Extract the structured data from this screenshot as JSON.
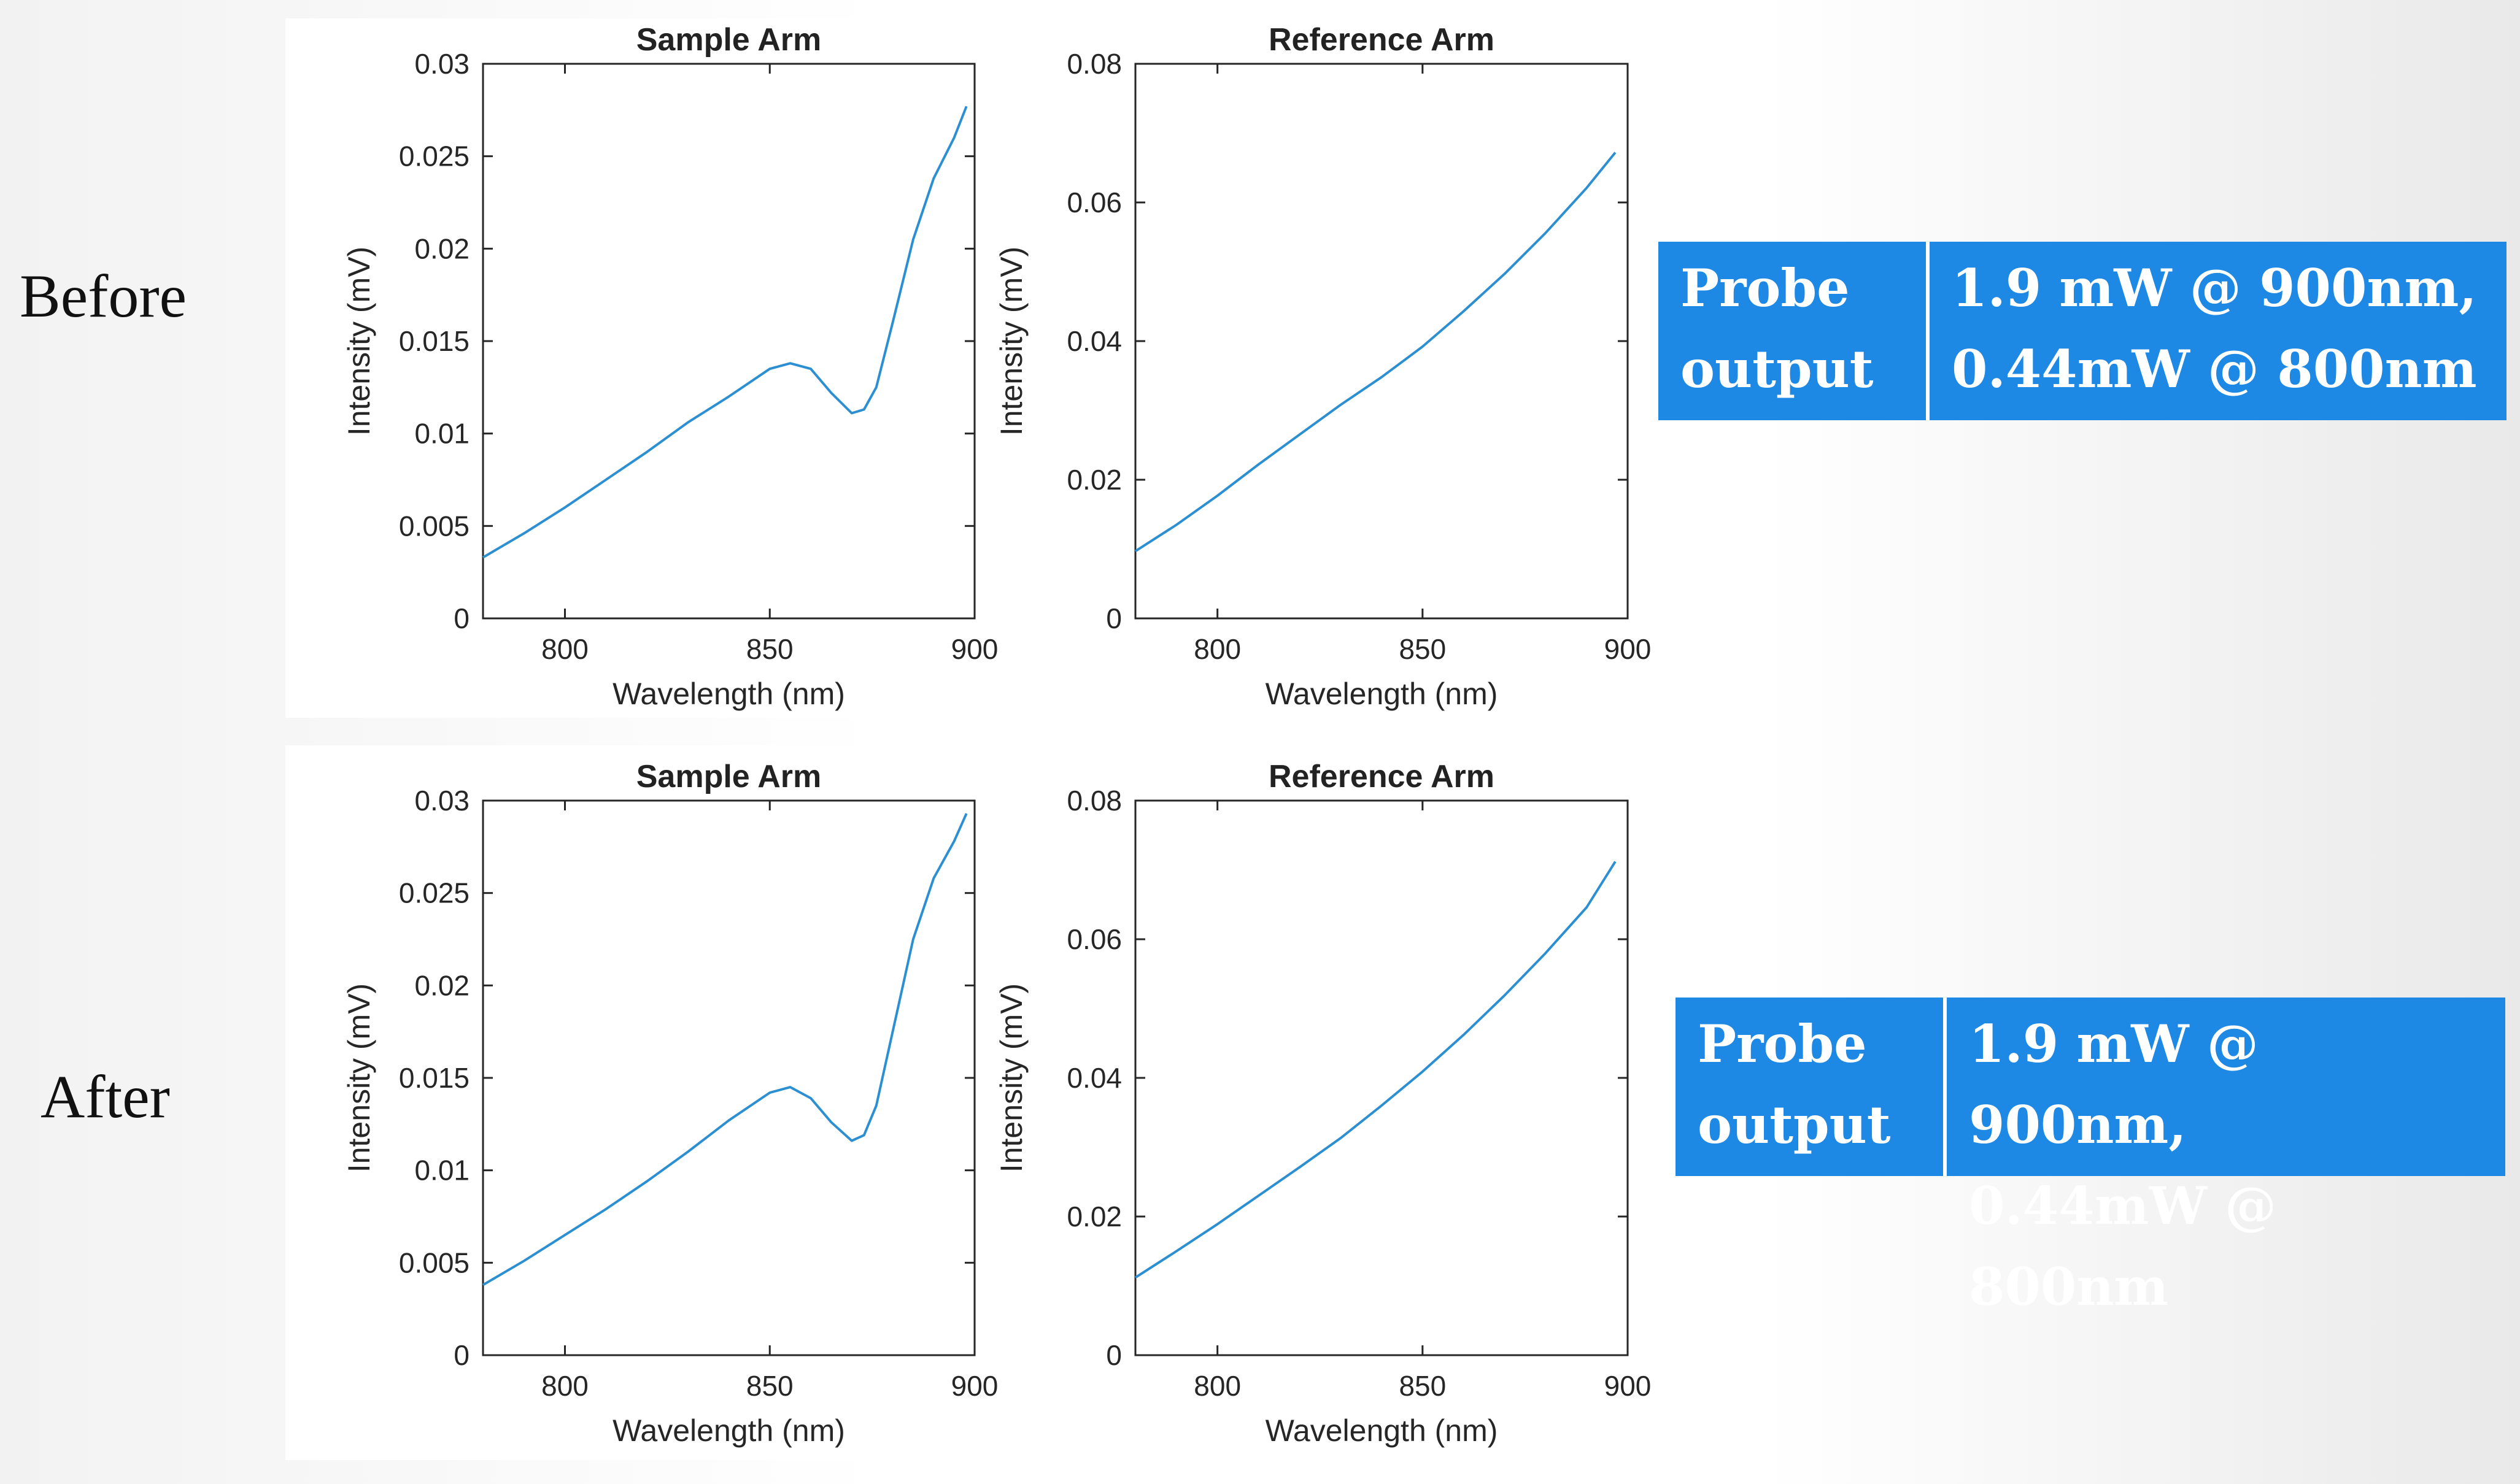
{
  "rows": [
    {
      "label": "Before",
      "info": {
        "label": "Probe\noutput",
        "value": "1.9 mW @ 900nm,\n0.44mW @ 800nm",
        "color": "#1e88e5"
      }
    },
    {
      "label": "After",
      "info": {
        "label": "Probe\noutput",
        "value": "1.9 mW @ 900nm,\n0.44mW @ 800nm",
        "color": "#1e88e5"
      }
    }
  ],
  "chart_data": [
    {
      "id": "before-sample",
      "type": "line",
      "title": "Sample Arm",
      "xlabel": "Wavelength (nm)",
      "ylabel": "Intensity (mV)",
      "xlim": [
        780,
        900
      ],
      "ylim": [
        0,
        0.03
      ],
      "xticks": [
        "800",
        "850",
        "900"
      ],
      "yticks": [
        "0",
        "0.005",
        "0.01",
        "0.015",
        "0.02",
        "0.025",
        "0.03"
      ],
      "line_color": "#2b8fd1",
      "grid": false,
      "x": [
        780,
        790,
        800,
        810,
        820,
        830,
        840,
        850,
        855,
        860,
        865,
        870,
        873,
        876,
        880,
        885,
        890,
        895,
        898
      ],
      "y": [
        0.0033,
        0.0046,
        0.006,
        0.0075,
        0.009,
        0.0106,
        0.012,
        0.0135,
        0.0138,
        0.0135,
        0.0122,
        0.0111,
        0.0113,
        0.0125,
        0.016,
        0.0205,
        0.0238,
        0.026,
        0.0277
      ]
    },
    {
      "id": "before-reference",
      "type": "line",
      "title": "Reference Arm",
      "xlabel": "Wavelength (nm)",
      "ylabel": "Intensity (mV)",
      "xlim": [
        780,
        900
      ],
      "ylim": [
        0,
        0.08
      ],
      "xticks": [
        "800",
        "850",
        "900"
      ],
      "yticks": [
        "0",
        "0.02",
        "0.04",
        "0.06",
        "0.08"
      ],
      "line_color": "#2b8fd1",
      "grid": false,
      "x": [
        780,
        790,
        800,
        810,
        820,
        830,
        840,
        850,
        860,
        870,
        880,
        890,
        897
      ],
      "y": [
        0.0097,
        0.0135,
        0.0177,
        0.0222,
        0.0265,
        0.0308,
        0.0348,
        0.0392,
        0.0443,
        0.0497,
        0.0556,
        0.0621,
        0.0672
      ]
    },
    {
      "id": "after-sample",
      "type": "line",
      "title": "Sample Arm",
      "xlabel": "Wavelength (nm)",
      "ylabel": "Intensity (mV)",
      "xlim": [
        780,
        900
      ],
      "ylim": [
        0,
        0.03
      ],
      "xticks": [
        "800",
        "850",
        "900"
      ],
      "yticks": [
        "0",
        "0.005",
        "0.01",
        "0.015",
        "0.02",
        "0.025",
        "0.03"
      ],
      "line_color": "#2b8fd1",
      "grid": false,
      "x": [
        780,
        790,
        800,
        810,
        820,
        830,
        840,
        850,
        855,
        860,
        865,
        870,
        873,
        876,
        880,
        885,
        890,
        895,
        898
      ],
      "y": [
        0.0038,
        0.0051,
        0.0065,
        0.0079,
        0.0094,
        0.011,
        0.0127,
        0.0142,
        0.0145,
        0.0139,
        0.0126,
        0.0116,
        0.0119,
        0.0135,
        0.0175,
        0.0225,
        0.0258,
        0.0278,
        0.0293
      ]
    },
    {
      "id": "after-reference",
      "type": "line",
      "title": "Reference Arm",
      "xlabel": "Wavelength (nm)",
      "ylabel": "Intensity (mV)",
      "xlim": [
        780,
        900
      ],
      "ylim": [
        0,
        0.08
      ],
      "xticks": [
        "800",
        "850",
        "900"
      ],
      "yticks": [
        "0",
        "0.02",
        "0.04",
        "0.06",
        "0.08"
      ],
      "line_color": "#2b8fd1",
      "grid": false,
      "x": [
        780,
        790,
        800,
        810,
        820,
        830,
        840,
        850,
        860,
        870,
        880,
        890,
        897
      ],
      "y": [
        0.0112,
        0.015,
        0.0189,
        0.023,
        0.0271,
        0.0313,
        0.036,
        0.0409,
        0.0462,
        0.0519,
        0.058,
        0.0646,
        0.0712
      ]
    }
  ]
}
